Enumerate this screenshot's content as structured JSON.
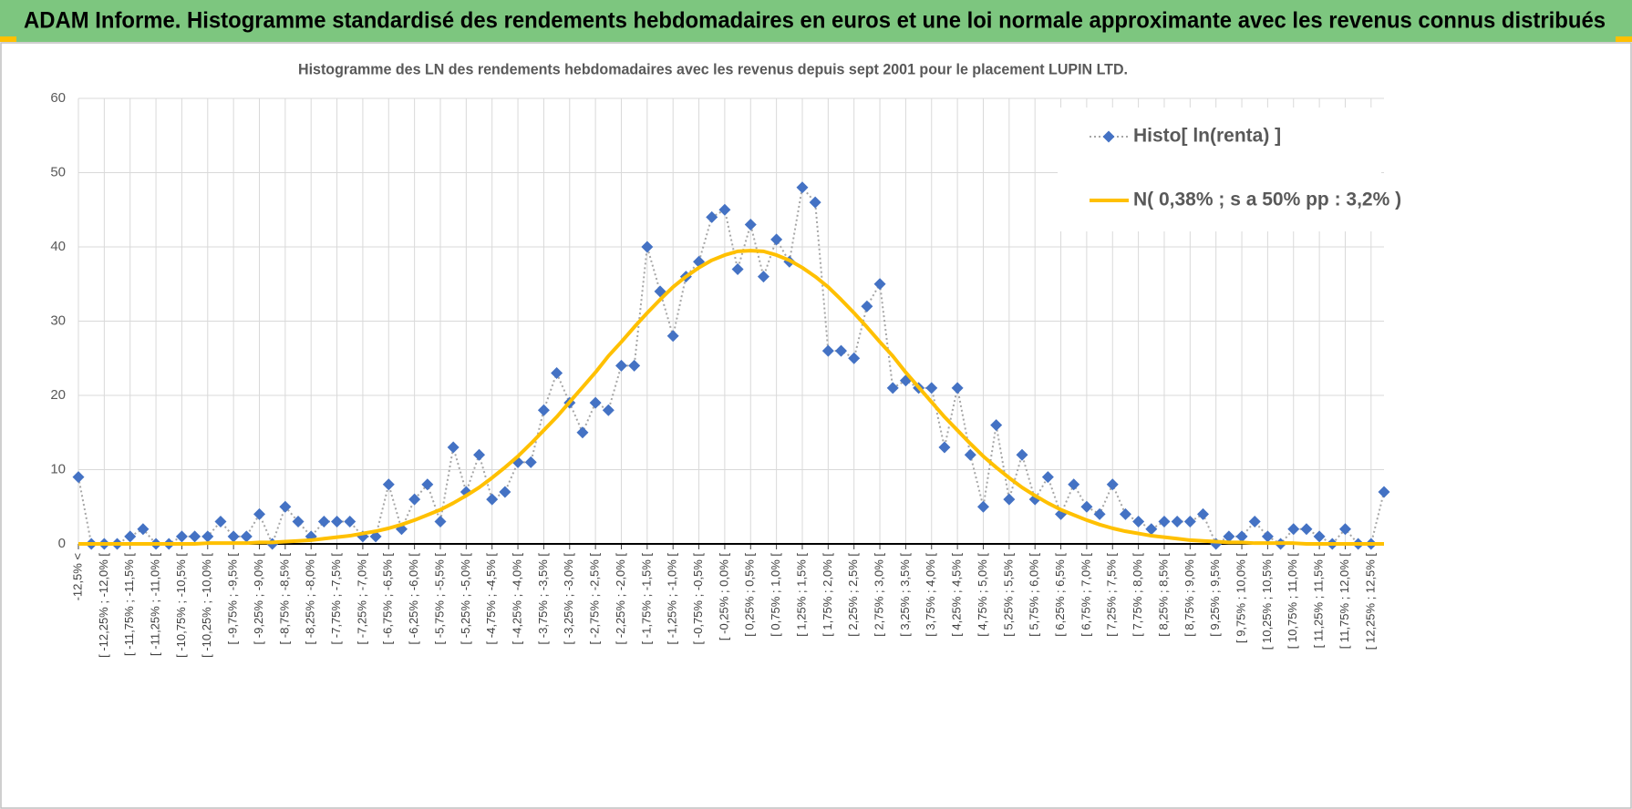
{
  "page_title": "ADAM Informe. Histogramme standardisé des rendements hebdomadaires en euros et une loi normale approximante avec les revenus connus distribués",
  "chart_data": {
    "type": "line",
    "title": "Histogramme des LN des rendements hebdomadaires avec les revenus depuis sept 2001 pour le placement LUPIN LTD.",
    "categories": [
      "-12,5% <",
      null,
      "[ -12,25% ; -12,0% [",
      null,
      "[ -11,75% ; -11,5% [",
      null,
      "[ -11,25% ; -11,0% [",
      null,
      "[ -10,75% ; -10,5% [",
      null,
      "[ -10,25% ; -10,0% [",
      null,
      "[ -9,75% ; -9,5% [",
      null,
      "[ -9,25% ; -9,0% [",
      null,
      "[ -8,75% ; -8,5% [",
      null,
      "[ -8,25% ; -8,0% [",
      null,
      "[ -7,75% ; -7,5% [",
      null,
      "[ -7,25% ; -7,0% [",
      null,
      "[ -6,75% ; -6,5% [",
      null,
      "[ -6,25% ; -6,0% [",
      null,
      "[ -5,75% ; -5,5% [",
      null,
      "[ -5,25% ; -5,0% [",
      null,
      "[ -4,75% ; -4,5% [",
      null,
      "[ -4,25% ; -4,0% [",
      null,
      "[ -3,75% ; -3,5% [",
      null,
      "[ -3,25% ; -3,0% [",
      null,
      "[ -2,75% ; -2,5% [",
      null,
      "[ -2,25% ; -2,0% [",
      null,
      "[ -1,75% ; -1,5% [",
      null,
      "[ -1,25% ; -1,0% [",
      null,
      "[ -0,75% ; -0,5% [",
      null,
      "[ -0,25% ; 0,0% [",
      null,
      "[ 0,25% ; 0,5% [",
      null,
      "[ 0,75% ; 1,0% [",
      null,
      "[ 1,25% ; 1,5% [",
      null,
      "[ 1,75% ; 2,0% [",
      null,
      "[ 2,25% ; 2,5% [",
      null,
      "[ 2,75% ; 3,0% [",
      null,
      "[ 3,25% ; 3,5% [",
      null,
      "[ 3,75% ; 4,0% [",
      null,
      "[ 4,25% ; 4,5% [",
      null,
      "[ 4,75% ; 5,0% [",
      null,
      "[ 5,25% ; 5,5% [",
      null,
      "[ 5,75% ; 6,0% [",
      null,
      "[ 6,25% ; 6,5% [",
      null,
      "[ 6,75% ; 7,0% [",
      null,
      "[ 7,25% ; 7,5% [",
      null,
      "[ 7,75% ; 8,0% [",
      null,
      "[ 8,25% ; 8,5% [",
      null,
      "[ 8,75% ; 9,0% [",
      null,
      "[ 9,25% ; 9,5% [",
      null,
      "[ 9,75% ; 10,0% [",
      null,
      "[ 10,25% ; 10,5% [",
      null,
      "[ 10,75% ; 11,0% [",
      null,
      "[ 11,25% ; 11,5% [",
      null,
      "[ 11,75% ; 12,0% [",
      null,
      "[ 12,25% ; 12,5% [",
      null
    ],
    "series": [
      {
        "name": "Histo[ ln(renta) ]",
        "color": "#4472c4",
        "line_color": "#a6a6a6",
        "marker": "diamond",
        "values": [
          9,
          0,
          0,
          0,
          1,
          2,
          0,
          0,
          1,
          1,
          1,
          3,
          1,
          1,
          4,
          0,
          5,
          3,
          1,
          3,
          3,
          3,
          1,
          1,
          8,
          2,
          6,
          8,
          3,
          13,
          7,
          12,
          6,
          7,
          11,
          11,
          18,
          23,
          19,
          15,
          19,
          18,
          24,
          24,
          40,
          34,
          28,
          36,
          38,
          44,
          45,
          37,
          43,
          36,
          41,
          38,
          48,
          46,
          26,
          26,
          25,
          32,
          35,
          21,
          22,
          21,
          21,
          13,
          21,
          12,
          5,
          16,
          6,
          12,
          6,
          9,
          4,
          8,
          5,
          4,
          8,
          4,
          3,
          2,
          3,
          3,
          3,
          4,
          0,
          1,
          1,
          3,
          1,
          0,
          2,
          2,
          1,
          0,
          2,
          0,
          0,
          7
        ]
      },
      {
        "name": "N( 0,38% ; s a 50% pp : 3,2% )",
        "color": "#ffc000",
        "marker": "none",
        "values": [
          0,
          0,
          0,
          0,
          0,
          0,
          0,
          0,
          0,
          0,
          0.1,
          0.1,
          0.1,
          0.1,
          0.2,
          0.2,
          0.3,
          0.4,
          0.5,
          0.7,
          0.9,
          1.1,
          1.4,
          1.7,
          2.1,
          2.6,
          3.2,
          3.9,
          4.6,
          5.5,
          6.5,
          7.6,
          8.9,
          10.3,
          11.8,
          13.5,
          15.3,
          17.1,
          19.1,
          21.1,
          23.1,
          25.3,
          27.2,
          29.2,
          31.1,
          32.9,
          34.6,
          36.0,
          37.2,
          38.2,
          38.9,
          39.4,
          39.5,
          39.4,
          38.9,
          38.2,
          37.2,
          36.0,
          34.6,
          32.9,
          31.1,
          29.2,
          27.2,
          25.3,
          23.1,
          21.1,
          19.1,
          17.1,
          15.3,
          13.5,
          11.8,
          10.3,
          8.9,
          7.6,
          6.5,
          5.5,
          4.6,
          3.9,
          3.2,
          2.6,
          2.1,
          1.7,
          1.4,
          1.1,
          0.9,
          0.7,
          0.5,
          0.4,
          0.3,
          0.2,
          0.2,
          0.1,
          0.1,
          0.1,
          0.1,
          0,
          0,
          0,
          0,
          0,
          0,
          0
        ]
      }
    ],
    "ylim": [
      0,
      60
    ],
    "yticks": [
      0,
      10,
      20,
      30,
      40,
      50,
      60
    ],
    "grid": true,
    "legend": "top-right"
  }
}
